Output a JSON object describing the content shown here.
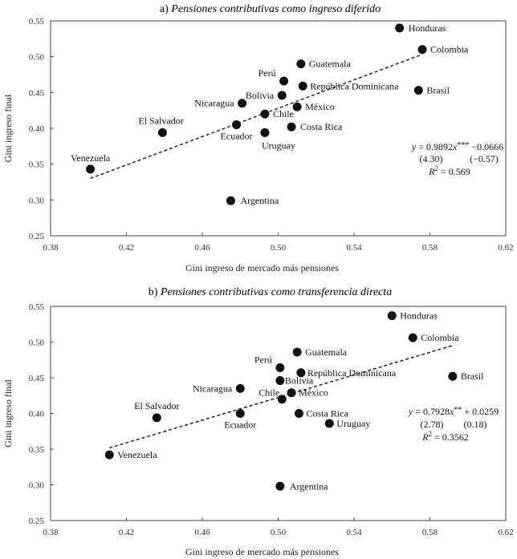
{
  "chart_data": [
    {
      "type": "scatter",
      "title_prefix": "a)",
      "title": "Pensiones contributivas como ingreso diferido",
      "xlabel": "Gini ingreso de mercado más pensiones",
      "ylabel": "Gini ingreso final",
      "xlim": [
        0.38,
        0.62
      ],
      "ylim": [
        0.25,
        0.55
      ],
      "xticks": [
        0.38,
        0.42,
        0.46,
        0.5,
        0.54,
        0.58,
        0.62
      ],
      "xtick_labels": [
        "0.38",
        "0.42",
        "0.46",
        "0.50",
        "0.54",
        "0.58",
        "0.62"
      ],
      "yticks": [
        0.25,
        0.3,
        0.35,
        0.4,
        0.45,
        0.5,
        0.55
      ],
      "ytick_labels": [
        "0.25",
        "0.30",
        "0.35",
        "0.40",
        "0.45",
        "0.50",
        "0.55"
      ],
      "points": [
        {
          "label": "Honduras",
          "x": 0.564,
          "y": 0.54
        },
        {
          "label": "Colombia",
          "x": 0.576,
          "y": 0.51
        },
        {
          "label": "Guatemala",
          "x": 0.512,
          "y": 0.49
        },
        {
          "label": "Perú",
          "x": 0.503,
          "y": 0.466
        },
        {
          "label": "Bolivia",
          "x": 0.502,
          "y": 0.446
        },
        {
          "label": "República Dominicana",
          "x": 0.513,
          "y": 0.459
        },
        {
          "label": "Brasil",
          "x": 0.574,
          "y": 0.453
        },
        {
          "label": "Nicaragua",
          "x": 0.481,
          "y": 0.435
        },
        {
          "label": "México",
          "x": 0.51,
          "y": 0.43
        },
        {
          "label": "Chile",
          "x": 0.493,
          "y": 0.42
        },
        {
          "label": "El Salvador",
          "x": 0.439,
          "y": 0.394
        },
        {
          "label": "Ecuador",
          "x": 0.478,
          "y": 0.405
        },
        {
          "label": "Costa Rica",
          "x": 0.507,
          "y": 0.402
        },
        {
          "label": "Uruguay",
          "x": 0.493,
          "y": 0.394
        },
        {
          "label": "Venezuela",
          "x": 0.401,
          "y": 0.343
        },
        {
          "label": "Argentina",
          "x": 0.475,
          "y": 0.299
        }
      ],
      "trendline": {
        "slope": 0.9892,
        "intercept": -0.0666,
        "x_range": [
          0.401,
          0.576
        ]
      },
      "equation": {
        "line1_lhs": "y",
        "line1_eq": " = 0.9892",
        "line1_var": "x",
        "line1_stars": "***",
        "line1_rest": " −0.0666",
        "line2_a": "(4.30)",
        "line2_b": "(−0.57)",
        "line3_r": "R",
        "line3_sup": "2",
        "line3_rest": " = 0.569"
      }
    },
    {
      "type": "scatter",
      "title_prefix": "b)",
      "title": "Pensiones contributivas como transferencia directa",
      "xlabel": "Gini ingreso de mercado más pensiones",
      "ylabel": "Gini ingreso final",
      "xlim": [
        0.38,
        0.62
      ],
      "ylim": [
        0.25,
        0.55
      ],
      "xticks": [
        0.38,
        0.42,
        0.46,
        0.5,
        0.54,
        0.58,
        0.62
      ],
      "xtick_labels": [
        "0.38",
        "0.42",
        "0.46",
        "0.50",
        "0.54",
        "0.58",
        "0.62"
      ],
      "yticks": [
        0.25,
        0.3,
        0.35,
        0.4,
        0.45,
        0.5,
        0.55
      ],
      "ytick_labels": [
        "0.25",
        "0.30",
        "0.35",
        "0.40",
        "0.45",
        "0.50",
        "0.55"
      ],
      "points": [
        {
          "label": "Honduras",
          "x": 0.56,
          "y": 0.537
        },
        {
          "label": "Colombia",
          "x": 0.571,
          "y": 0.506
        },
        {
          "label": "Guatemala",
          "x": 0.51,
          "y": 0.486
        },
        {
          "label": "Perú",
          "x": 0.501,
          "y": 0.464
        },
        {
          "label": "Bolivia",
          "x": 0.501,
          "y": 0.446
        },
        {
          "label": "República Dominicana",
          "x": 0.512,
          "y": 0.457
        },
        {
          "label": "Brasil",
          "x": 0.592,
          "y": 0.452
        },
        {
          "label": "Nicaragua",
          "x": 0.48,
          "y": 0.435
        },
        {
          "label": "México",
          "x": 0.507,
          "y": 0.429
        },
        {
          "label": "Chile",
          "x": 0.502,
          "y": 0.42
        },
        {
          "label": "El Salvador",
          "x": 0.436,
          "y": 0.394
        },
        {
          "label": "Ecuador",
          "x": 0.48,
          "y": 0.4
        },
        {
          "label": "Costa Rica",
          "x": 0.511,
          "y": 0.4
        },
        {
          "label": "Uruguay",
          "x": 0.527,
          "y": 0.386
        },
        {
          "label": "Venezuela",
          "x": 0.411,
          "y": 0.342
        },
        {
          "label": "Argentina",
          "x": 0.501,
          "y": 0.298
        }
      ],
      "trendline": {
        "slope": 0.7928,
        "intercept": 0.0259,
        "x_range": [
          0.411,
          0.592
        ]
      },
      "equation": {
        "line1_lhs": "y",
        "line1_eq": " = 0.7928",
        "line1_var": "x",
        "line1_stars": "**",
        "line1_rest": " + 0.0259",
        "line2_a": "(2.78)",
        "line2_b": "(0.18)",
        "line3_r": "R",
        "line3_sup": "2",
        "line3_rest": " = 0.3562"
      }
    }
  ]
}
